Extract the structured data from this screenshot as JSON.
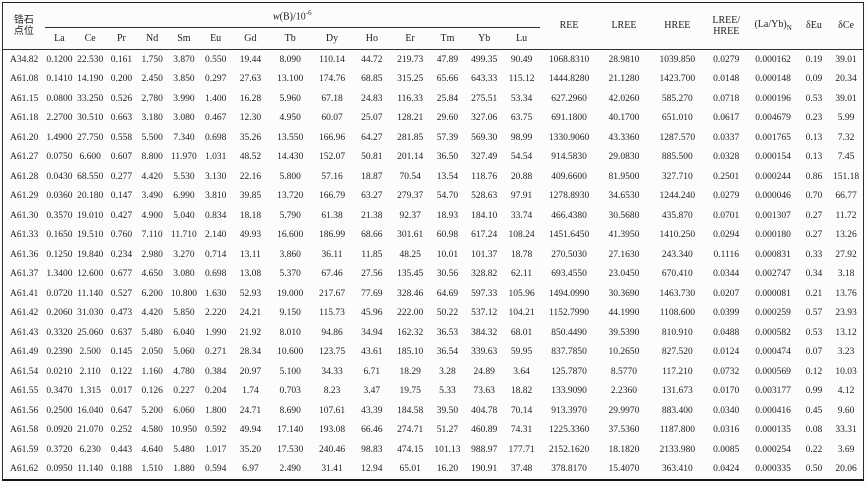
{
  "table": {
    "row_header": {
      "line1": "锆石",
      "line2": "点位"
    },
    "span_header": {
      "symbol": "w",
      "rest": "(B)/10",
      "exponent": "-6"
    },
    "element_columns": [
      "La",
      "Ce",
      "Pr",
      "Nd",
      "Sm",
      "Eu",
      "Gd",
      "Tb",
      "Dy",
      "Ho",
      "Er",
      "Tm",
      "Yb",
      "Lu"
    ],
    "summary_columns": {
      "ree": "REE",
      "lree": "LREE",
      "hree": "HREE"
    },
    "ratio_header": {
      "line1": "LREE/",
      "line2": "HREE"
    },
    "layb_header": {
      "main": "(La/Yb)",
      "sub": "N"
    },
    "delta_eu_header": "δEu",
    "delta_ce_header": "δCe",
    "rows": [
      {
        "spot": "A34.82",
        "values": [
          "0.1200",
          "22.530",
          "0.161",
          "1.750",
          "3.870",
          "0.550",
          "19.44",
          "8.090",
          "110.14",
          "44.72",
          "219.73",
          "47.89",
          "499.35",
          "90.49",
          "1068.8310",
          "28.9810",
          "1039.850",
          "0.0279",
          "0.000162",
          "0.19",
          "39.01"
        ]
      },
      {
        "spot": "A61.08",
        "values": [
          "0.1410",
          "14.190",
          "0.200",
          "2.450",
          "3.850",
          "0.297",
          "27.63",
          "13.100",
          "174.76",
          "68.85",
          "315.25",
          "65.66",
          "643.33",
          "115.12",
          "1444.8280",
          "21.1280",
          "1423.700",
          "0.0148",
          "0.000148",
          "0.09",
          "20.34"
        ]
      },
      {
        "spot": "A61.15",
        "values": [
          "0.0800",
          "33.250",
          "0.526",
          "2.780",
          "3.990",
          "1.400",
          "16.28",
          "5.960",
          "67.18",
          "24.83",
          "116.33",
          "25.84",
          "275.51",
          "53.34",
          "627.2960",
          "42.0260",
          "585.270",
          "0.0718",
          "0.000196",
          "0.53",
          "39.01"
        ]
      },
      {
        "spot": "A61.18",
        "values": [
          "2.2700",
          "30.510",
          "0.663",
          "3.180",
          "3.080",
          "0.467",
          "12.30",
          "4.950",
          "60.07",
          "25.07",
          "128.21",
          "29.60",
          "327.06",
          "63.75",
          "691.1800",
          "40.1700",
          "651.010",
          "0.0617",
          "0.004679",
          "0.23",
          "5.99"
        ]
      },
      {
        "spot": "A61.20",
        "values": [
          "1.4900",
          "27.750",
          "0.558",
          "5.500",
          "7.340",
          "0.698",
          "35.26",
          "13.550",
          "166.96",
          "64.27",
          "281.85",
          "57.39",
          "569.30",
          "98.99",
          "1330.9060",
          "43.3360",
          "1287.570",
          "0.0337",
          "0.001765",
          "0.13",
          "7.32"
        ]
      },
      {
        "spot": "A61.27",
        "values": [
          "0.0750",
          "6.600",
          "0.607",
          "8.800",
          "11.970",
          "1.031",
          "48.52",
          "14.430",
          "152.07",
          "50.81",
          "201.14",
          "36.50",
          "327.49",
          "54.54",
          "914.5830",
          "29.0830",
          "885.500",
          "0.0328",
          "0.000154",
          "0.13",
          "7.45"
        ]
      },
      {
        "spot": "A61.28",
        "values": [
          "0.0430",
          "68.550",
          "0.277",
          "4.420",
          "5.530",
          "3.130",
          "22.16",
          "5.800",
          "57.16",
          "18.87",
          "70.54",
          "13.54",
          "118.76",
          "20.88",
          "409.6600",
          "81.9500",
          "327.710",
          "0.2501",
          "0.000244",
          "0.86",
          "151.18"
        ]
      },
      {
        "spot": "A61.29",
        "values": [
          "0.0360",
          "20.180",
          "0.147",
          "3.490",
          "6.990",
          "3.810",
          "39.85",
          "13.720",
          "166.79",
          "63.27",
          "279.37",
          "54.70",
          "528.63",
          "97.91",
          "1278.8930",
          "34.6530",
          "1244.240",
          "0.0279",
          "0.000046",
          "0.70",
          "66.77"
        ]
      },
      {
        "spot": "A61.30",
        "values": [
          "0.3570",
          "19.010",
          "0.427",
          "4.900",
          "5.040",
          "0.834",
          "18.18",
          "5.790",
          "61.38",
          "21.38",
          "92.37",
          "18.93",
          "184.10",
          "33.74",
          "466.4380",
          "30.5680",
          "435.870",
          "0.0701",
          "0.001307",
          "0.27",
          "11.72"
        ]
      },
      {
        "spot": "A61.33",
        "values": [
          "0.1650",
          "19.510",
          "0.760",
          "7.110",
          "11.710",
          "2.140",
          "49.93",
          "16.600",
          "186.99",
          "68.66",
          "301.61",
          "60.98",
          "617.24",
          "108.24",
          "1451.6450",
          "41.3950",
          "1410.250",
          "0.0294",
          "0.000180",
          "0.27",
          "13.26"
        ]
      },
      {
        "spot": "A61.36",
        "values": [
          "0.1250",
          "19.840",
          "0.234",
          "2.980",
          "3.270",
          "0.714",
          "13.11",
          "3.860",
          "36.11",
          "11.85",
          "48.25",
          "10.01",
          "101.37",
          "18.78",
          "270.5030",
          "27.1630",
          "243.340",
          "0.1116",
          "0.000831",
          "0.33",
          "27.92"
        ]
      },
      {
        "spot": "A61.37",
        "values": [
          "1.3400",
          "12.600",
          "0.677",
          "4.650",
          "3.080",
          "0.698",
          "13.08",
          "5.370",
          "67.46",
          "27.56",
          "135.45",
          "30.56",
          "328.82",
          "62.11",
          "693.4550",
          "23.0450",
          "670.410",
          "0.0344",
          "0.002747",
          "0.34",
          "3.18"
        ]
      },
      {
        "spot": "A61.41",
        "values": [
          "0.0720",
          "11.140",
          "0.527",
          "6.200",
          "10.800",
          "1.630",
          "52.93",
          "19.000",
          "217.67",
          "77.69",
          "328.46",
          "64.69",
          "597.33",
          "105.96",
          "1494.0990",
          "30.3690",
          "1463.730",
          "0.0207",
          "0.000081",
          "0.21",
          "13.76"
        ]
      },
      {
        "spot": "A61.42",
        "values": [
          "0.2060",
          "31.030",
          "0.473",
          "4.420",
          "5.850",
          "2.220",
          "24.21",
          "9.150",
          "115.73",
          "45.96",
          "222.00",
          "50.22",
          "537.12",
          "104.21",
          "1152.7990",
          "44.1990",
          "1108.600",
          "0.0399",
          "0.000259",
          "0.57",
          "23.93"
        ]
      },
      {
        "spot": "A61.43",
        "values": [
          "0.3320",
          "25.060",
          "0.637",
          "5.480",
          "6.040",
          "1.990",
          "21.92",
          "8.010",
          "94.86",
          "34.94",
          "162.32",
          "36.53",
          "384.32",
          "68.01",
          "850.4490",
          "39.5390",
          "810.910",
          "0.0488",
          "0.000582",
          "0.53",
          "13.12"
        ]
      },
      {
        "spot": "A61.49",
        "values": [
          "0.2390",
          "2.500",
          "0.145",
          "2.050",
          "5.060",
          "0.271",
          "28.34",
          "10.600",
          "123.75",
          "43.61",
          "185.10",
          "36.54",
          "339.63",
          "59.95",
          "837.7850",
          "10.2650",
          "827.520",
          "0.0124",
          "0.000474",
          "0.07",
          "3.23"
        ]
      },
      {
        "spot": "A61.54",
        "values": [
          "0.0210",
          "2.110",
          "0.122",
          "1.160",
          "4.780",
          "0.384",
          "20.97",
          "5.100",
          "34.33",
          "6.71",
          "18.29",
          "3.28",
          "24.89",
          "3.64",
          "125.7870",
          "8.5770",
          "117.210",
          "0.0732",
          "0.000569",
          "0.12",
          "10.03"
        ]
      },
      {
        "spot": "A61.55",
        "values": [
          "0.3470",
          "1.315",
          "0.017",
          "0.126",
          "0.227",
          "0.204",
          "1.74",
          "0.703",
          "8.23",
          "3.47",
          "19.75",
          "5.33",
          "73.63",
          "18.82",
          "133.9090",
          "2.2360",
          "131.673",
          "0.0170",
          "0.003177",
          "0.99",
          "4.12"
        ]
      },
      {
        "spot": "A61.56",
        "values": [
          "0.2500",
          "16.040",
          "0.647",
          "5.200",
          "6.060",
          "1.800",
          "24.71",
          "8.690",
          "107.61",
          "43.39",
          "184.58",
          "39.50",
          "404.78",
          "70.14",
          "913.3970",
          "29.9970",
          "883.400",
          "0.0340",
          "0.000416",
          "0.45",
          "9.60"
        ]
      },
      {
        "spot": "A61.58",
        "values": [
          "0.0920",
          "21.070",
          "0.252",
          "4.580",
          "10.950",
          "0.592",
          "49.94",
          "17.140",
          "193.08",
          "66.46",
          "274.71",
          "51.27",
          "460.89",
          "74.31",
          "1225.3360",
          "37.5360",
          "1187.800",
          "0.0316",
          "0.000135",
          "0.08",
          "33.31"
        ]
      },
      {
        "spot": "A61.59",
        "values": [
          "0.3720",
          "6.230",
          "0.443",
          "4.640",
          "5.480",
          "1.017",
          "35.20",
          "17.530",
          "240.46",
          "98.83",
          "474.15",
          "101.13",
          "988.97",
          "177.71",
          "2152.1620",
          "18.1820",
          "2133.980",
          "0.0085",
          "0.000254",
          "0.22",
          "3.69"
        ]
      },
      {
        "spot": "A61.62",
        "values": [
          "0.0950",
          "11.140",
          "0.188",
          "1.510",
          "1.880",
          "0.594",
          "6.97",
          "2.490",
          "31.41",
          "12.94",
          "65.01",
          "16.20",
          "190.91",
          "37.48",
          "378.8170",
          "15.4070",
          "363.410",
          "0.0424",
          "0.000335",
          "0.50",
          "20.06"
        ]
      }
    ]
  }
}
